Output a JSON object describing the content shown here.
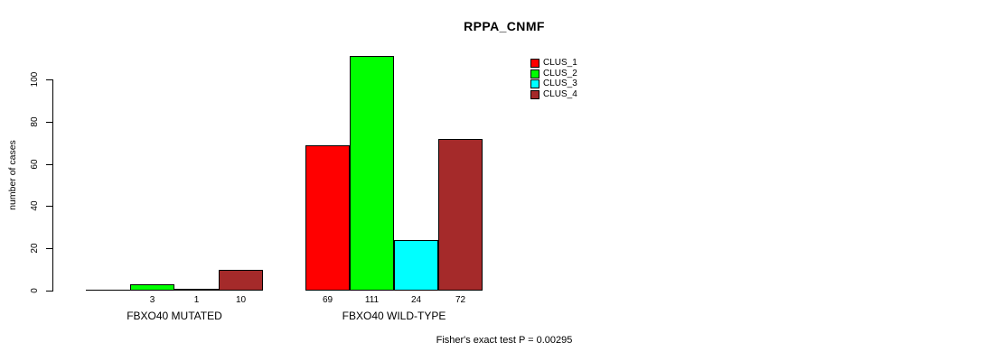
{
  "chart_data": {
    "type": "bar",
    "title": "RPPA_CNMF",
    "xlabel": "",
    "ylabel": "number of cases",
    "categories": [
      "FBXO40 MUTATED",
      "FBXO40 WILD-TYPE"
    ],
    "series": [
      {
        "name": "CLUS_1",
        "color": "#FF0000",
        "values": [
          0,
          69
        ]
      },
      {
        "name": "CLUS_2",
        "color": "#00FF00",
        "values": [
          3,
          111
        ]
      },
      {
        "name": "CLUS_3",
        "color": "#00FFFF",
        "values": [
          1,
          24
        ]
      },
      {
        "name": "CLUS_4",
        "color": "#A52A2A",
        "values": [
          10,
          72
        ]
      }
    ],
    "bar_value_labels": [
      [
        "",
        "3",
        "1",
        "10"
      ],
      [
        "69",
        "111",
        "24",
        "72"
      ]
    ],
    "yticks": [
      0,
      20,
      40,
      60,
      80,
      100
    ],
    "ylim": [
      0,
      113
    ],
    "grid": false,
    "legend_position": "top-right",
    "legend_entries": [
      "CLUS_1",
      "CLUS_2",
      "CLUS_3",
      "CLUS_4"
    ],
    "annotation": "Fisher's exact test P = 0.00295"
  },
  "colors": {
    "background": "#FFFFFF",
    "axis": "#000000",
    "text": "#000000",
    "bar_border": "#000000"
  }
}
